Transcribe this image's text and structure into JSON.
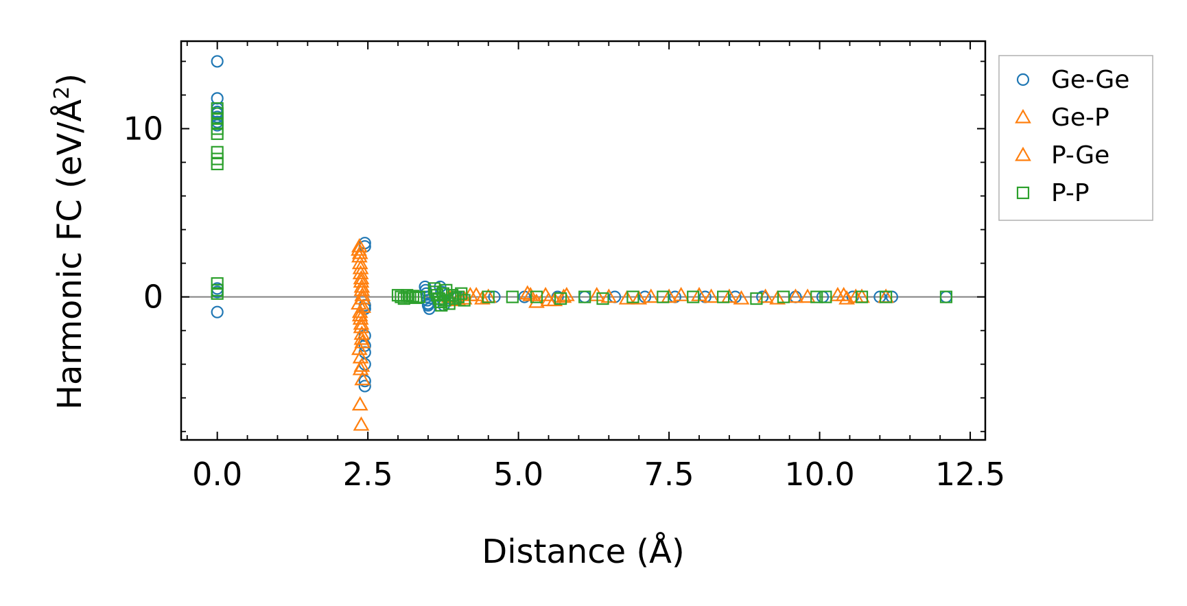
{
  "chart_data": {
    "type": "scatter",
    "title": "",
    "xlabel": "Distance (Å)",
    "ylabel_main": "Harmonic FC (eV/Å",
    "ylabel_sup": "2",
    "ylabel_close": ")",
    "xlim": [
      -0.6,
      12.75
    ],
    "ylim": [
      -8.5,
      15.2
    ],
    "xticks": [
      0.0,
      2.5,
      5.0,
      7.5,
      10.0,
      12.5
    ],
    "xtick_labels": [
      "0.0",
      "2.5",
      "5.0",
      "7.5",
      "10.0",
      "12.5"
    ],
    "xminor_step": 0.5,
    "yticks": [
      0,
      10
    ],
    "ytick_labels": [
      "0",
      "10"
    ],
    "yminor_step": 2,
    "zero_line": true,
    "grid": false,
    "legend_position": "outside-right-top",
    "colors": {
      "Ge-Ge": "#1f77b4",
      "Ge-P": "#ff7f0e",
      "P-Ge": "#ff7f0e",
      "P-P": "#2ca02c",
      "zero_line": "#808080"
    },
    "series": [
      {
        "name": "Ge-Ge",
        "marker": "circle",
        "x": [
          0.0,
          0.0,
          0.0,
          0.0,
          0.0,
          0.0,
          0.0,
          0.0,
          0.0,
          0.0,
          0.0,
          2.45,
          2.45,
          2.45,
          2.45,
          2.45,
          2.45,
          2.45,
          2.45,
          2.45,
          2.45,
          3.45,
          3.46,
          3.47,
          3.48,
          3.49,
          3.5,
          3.5,
          3.52,
          3.7,
          3.72,
          3.75,
          3.76,
          4.0,
          4.6,
          5.1,
          5.65,
          6.1,
          6.6,
          7.1,
          7.6,
          8.1,
          8.6,
          9.05,
          9.6,
          10.05,
          10.55,
          11.0,
          11.2,
          12.1
        ],
        "y": [
          14.0,
          11.8,
          11.2,
          11.0,
          10.9,
          10.7,
          10.4,
          10.2,
          0.5,
          0.3,
          -0.9,
          3.2,
          3.0,
          -0.5,
          -0.7,
          -2.3,
          -2.9,
          -3.3,
          -4.0,
          -5.0,
          -5.3,
          0.6,
          0.4,
          0.2,
          0.0,
          -0.2,
          -0.4,
          -0.5,
          -0.7,
          0.6,
          0.3,
          -0.2,
          -0.5,
          0.0,
          0.0,
          0.0,
          0.0,
          0.0,
          0.0,
          0.0,
          0.0,
          0.0,
          0.0,
          0.0,
          0.0,
          0.0,
          0.0,
          0.0,
          0.0,
          0.0
        ]
      },
      {
        "name": "Ge-P",
        "marker": "triangle",
        "x": [
          2.35,
          2.36,
          2.37,
          2.38,
          2.39,
          2.4,
          2.41,
          2.35,
          2.37,
          2.38,
          2.39,
          2.4,
          2.41,
          2.36,
          2.38,
          2.4,
          2.37,
          2.39,
          3.85,
          4.0,
          4.2,
          4.4,
          5.15,
          5.3,
          5.45,
          5.6,
          5.75,
          6.3,
          6.8,
          7.2,
          7.7,
          8.2,
          8.7,
          9.1,
          9.6,
          10.3,
          10.45,
          10.6
        ],
        "y": [
          2.8,
          2.4,
          2.0,
          1.4,
          0.9,
          0.4,
          0.1,
          -0.4,
          -0.9,
          -1.3,
          -1.8,
          -2.2,
          -2.7,
          -3.1,
          -3.6,
          -4.1,
          -6.4,
          -7.6,
          0.0,
          -0.2,
          0.1,
          -0.1,
          0.2,
          -0.3,
          0.1,
          -0.2,
          0.0,
          0.1,
          -0.1,
          0.0,
          0.1,
          0.0,
          -0.1,
          0.0,
          0.0,
          0.1,
          -0.1,
          0.0
        ]
      },
      {
        "name": "P-Ge",
        "marker": "triangle",
        "x": [
          2.36,
          2.37,
          2.38,
          2.39,
          2.4,
          2.41,
          2.42,
          2.37,
          2.39,
          2.4,
          2.38,
          2.41,
          4.1,
          4.3,
          4.5,
          5.2,
          5.5,
          5.8,
          6.5,
          7.0,
          7.5,
          8.0,
          8.5,
          9.3,
          9.8,
          10.4,
          10.7,
          11.1
        ],
        "y": [
          3.0,
          2.6,
          1.7,
          1.1,
          0.6,
          -0.1,
          -0.6,
          -1.1,
          -1.6,
          -2.5,
          -4.3,
          -4.9,
          -0.1,
          0.1,
          0.0,
          0.1,
          -0.2,
          0.1,
          0.0,
          -0.1,
          0.0,
          0.1,
          0.0,
          -0.1,
          0.0,
          0.1,
          0.0,
          0.0
        ]
      },
      {
        "name": "P-P",
        "marker": "square",
        "x": [
          0.0,
          0.0,
          0.0,
          0.0,
          0.0,
          0.0,
          0.0,
          0.0,
          0.0,
          0.0,
          0.0,
          0.0,
          3.0,
          3.05,
          3.1,
          3.15,
          3.2,
          3.25,
          3.3,
          3.35,
          3.6,
          3.62,
          3.65,
          3.68,
          3.7,
          3.72,
          3.75,
          3.78,
          3.8,
          3.85,
          3.9,
          3.95,
          4.0,
          4.05,
          4.1,
          4.5,
          4.9,
          5.3,
          5.7,
          6.1,
          6.4,
          6.9,
          7.4,
          7.9,
          8.4,
          8.95,
          9.4,
          9.95,
          10.1,
          10.7,
          11.1,
          12.1
        ],
        "y": [
          11.2,
          10.9,
          10.6,
          10.3,
          10.0,
          9.7,
          8.6,
          8.2,
          7.9,
          0.8,
          0.4,
          0.2,
          0.1,
          0.0,
          -0.1,
          0.1,
          0.0,
          0.05,
          -0.05,
          0.0,
          0.5,
          0.3,
          0.1,
          -0.1,
          -0.3,
          -0.5,
          0.2,
          -0.2,
          0.4,
          -0.4,
          0.1,
          -0.1,
          0.0,
          0.2,
          -0.2,
          0.0,
          0.0,
          0.0,
          -0.1,
          0.0,
          -0.1,
          0.0,
          0.0,
          0.0,
          0.0,
          -0.1,
          0.0,
          0.0,
          0.0,
          0.0,
          0.0,
          0.0
        ]
      }
    ]
  }
}
